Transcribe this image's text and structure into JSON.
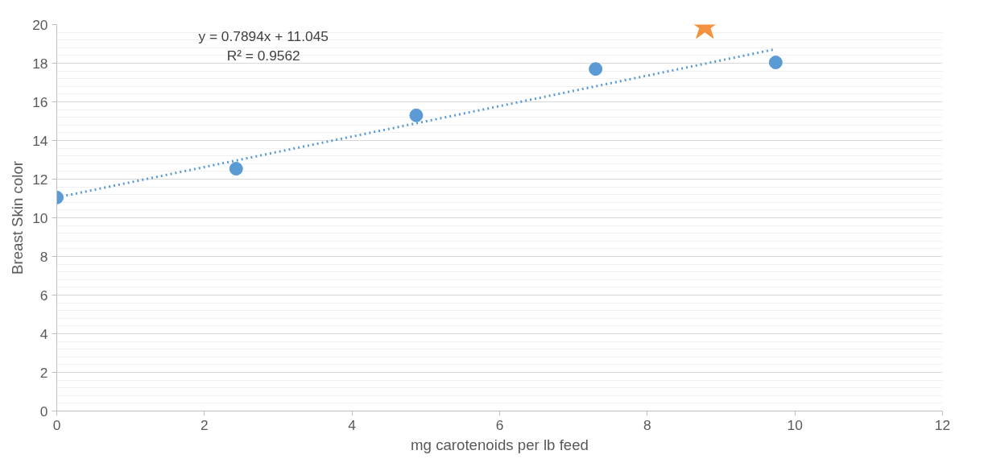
{
  "chart_data": {
    "type": "scatter",
    "xlabel": "mg carotenoids per lb feed",
    "ylabel": "Breast Skin color",
    "xlim": [
      0,
      12
    ],
    "xticks": [
      0,
      2,
      4,
      6,
      8,
      10,
      12
    ],
    "ylim": [
      0,
      20
    ],
    "yticks": [
      0,
      2,
      4,
      6,
      8,
      10,
      12,
      14,
      16,
      18,
      20
    ],
    "grid": "y",
    "series": [
      {
        "marker": "circle",
        "color": "#5b9bd5",
        "x": [
          0,
          2.43,
          4.87,
          7.3,
          9.74
        ],
        "values": [
          11.05,
          12.54,
          15.3,
          17.7,
          18.04
        ]
      },
      {
        "type": "line",
        "line_style": "dotted",
        "color": "#5b9bd5",
        "x": [
          0,
          9.74
        ],
        "values": [
          11.05,
          18.73
        ]
      },
      {
        "marker": "star",
        "color": "#f4913e",
        "x": [
          8.78
        ],
        "values": [
          19.9
        ]
      }
    ],
    "annotations": [
      "y = 0.7894x + 11.045",
      "R² = 0.9562"
    ]
  }
}
